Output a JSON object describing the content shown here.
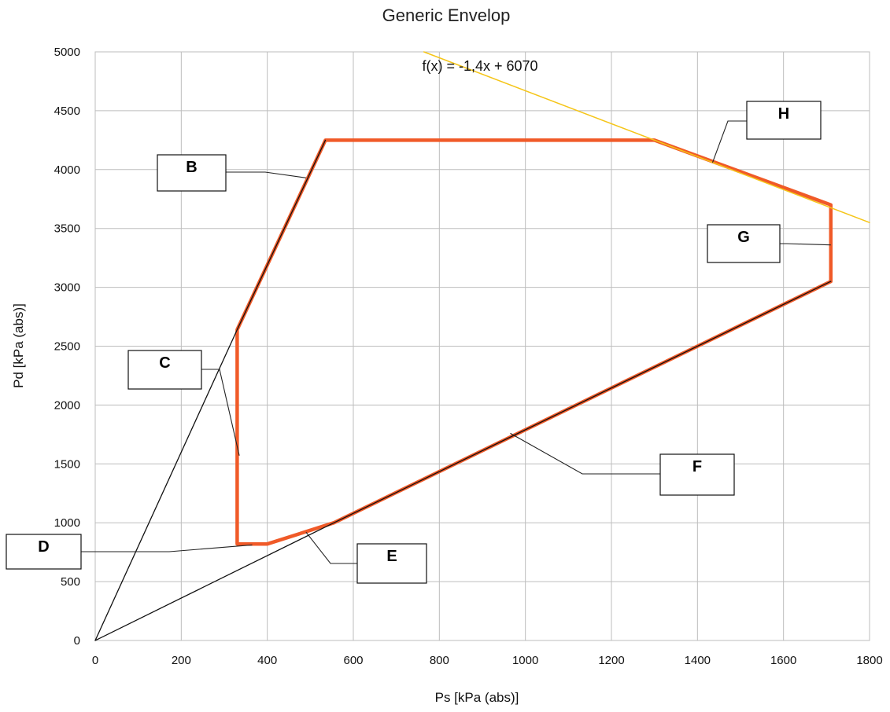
{
  "chart_data": {
    "type": "line",
    "title": "Generic Envelop",
    "xlabel": "Ps [kPa (abs)]",
    "ylabel": "Pd [kPa (abs)]",
    "xlim": [
      0,
      1800
    ],
    "ylim": [
      0,
      5000
    ],
    "x_ticks": [
      "0",
      "200",
      "400",
      "600",
      "800",
      "1000",
      "1200",
      "1400",
      "1600",
      "1800"
    ],
    "y_ticks": [
      "0",
      "500",
      "1000",
      "1500",
      "2000",
      "2500",
      "3000",
      "3500",
      "4000",
      "4500",
      "5000"
    ],
    "grid": true,
    "legend": "none",
    "series": [
      {
        "color": "#f05a28",
        "points": [
          [
            330,
            2640
          ],
          [
            535,
            4250
          ],
          [
            1300,
            4250
          ],
          [
            1710,
            3700
          ],
          [
            1710,
            3050
          ],
          [
            555,
            1000
          ],
          [
            400,
            820
          ],
          [
            330,
            820
          ],
          [
            330,
            2640
          ]
        ]
      },
      {
        "color": "#111111",
        "points": [
          [
            0,
            0
          ],
          [
            555,
            1000
          ],
          [
            1710,
            3050
          ]
        ]
      },
      {
        "color": "#111111",
        "points": [
          [
            0,
            0
          ],
          [
            330,
            2640
          ],
          [
            535,
            4250
          ]
        ]
      },
      {
        "color": "#f5c518",
        "points": [
          [
            764,
            5000
          ],
          [
            1800,
            3550
          ]
        ]
      }
    ],
    "trendline_equation": "f(x) = -1,4x + 6070",
    "annotations": [
      {
        "label": "B",
        "target": [
          490,
          3930
        ]
      },
      {
        "label": "C",
        "target": [
          335,
          1570
        ]
      },
      {
        "label": "D",
        "target": [
          365,
          812
        ]
      },
      {
        "label": "E",
        "target": [
          490,
          920
        ]
      },
      {
        "label": "F",
        "target": [
          965,
          1760
        ]
      },
      {
        "label": "G",
        "target": [
          1710,
          3360
        ]
      },
      {
        "label": "H",
        "target": [
          1435,
          4060
        ]
      }
    ]
  }
}
